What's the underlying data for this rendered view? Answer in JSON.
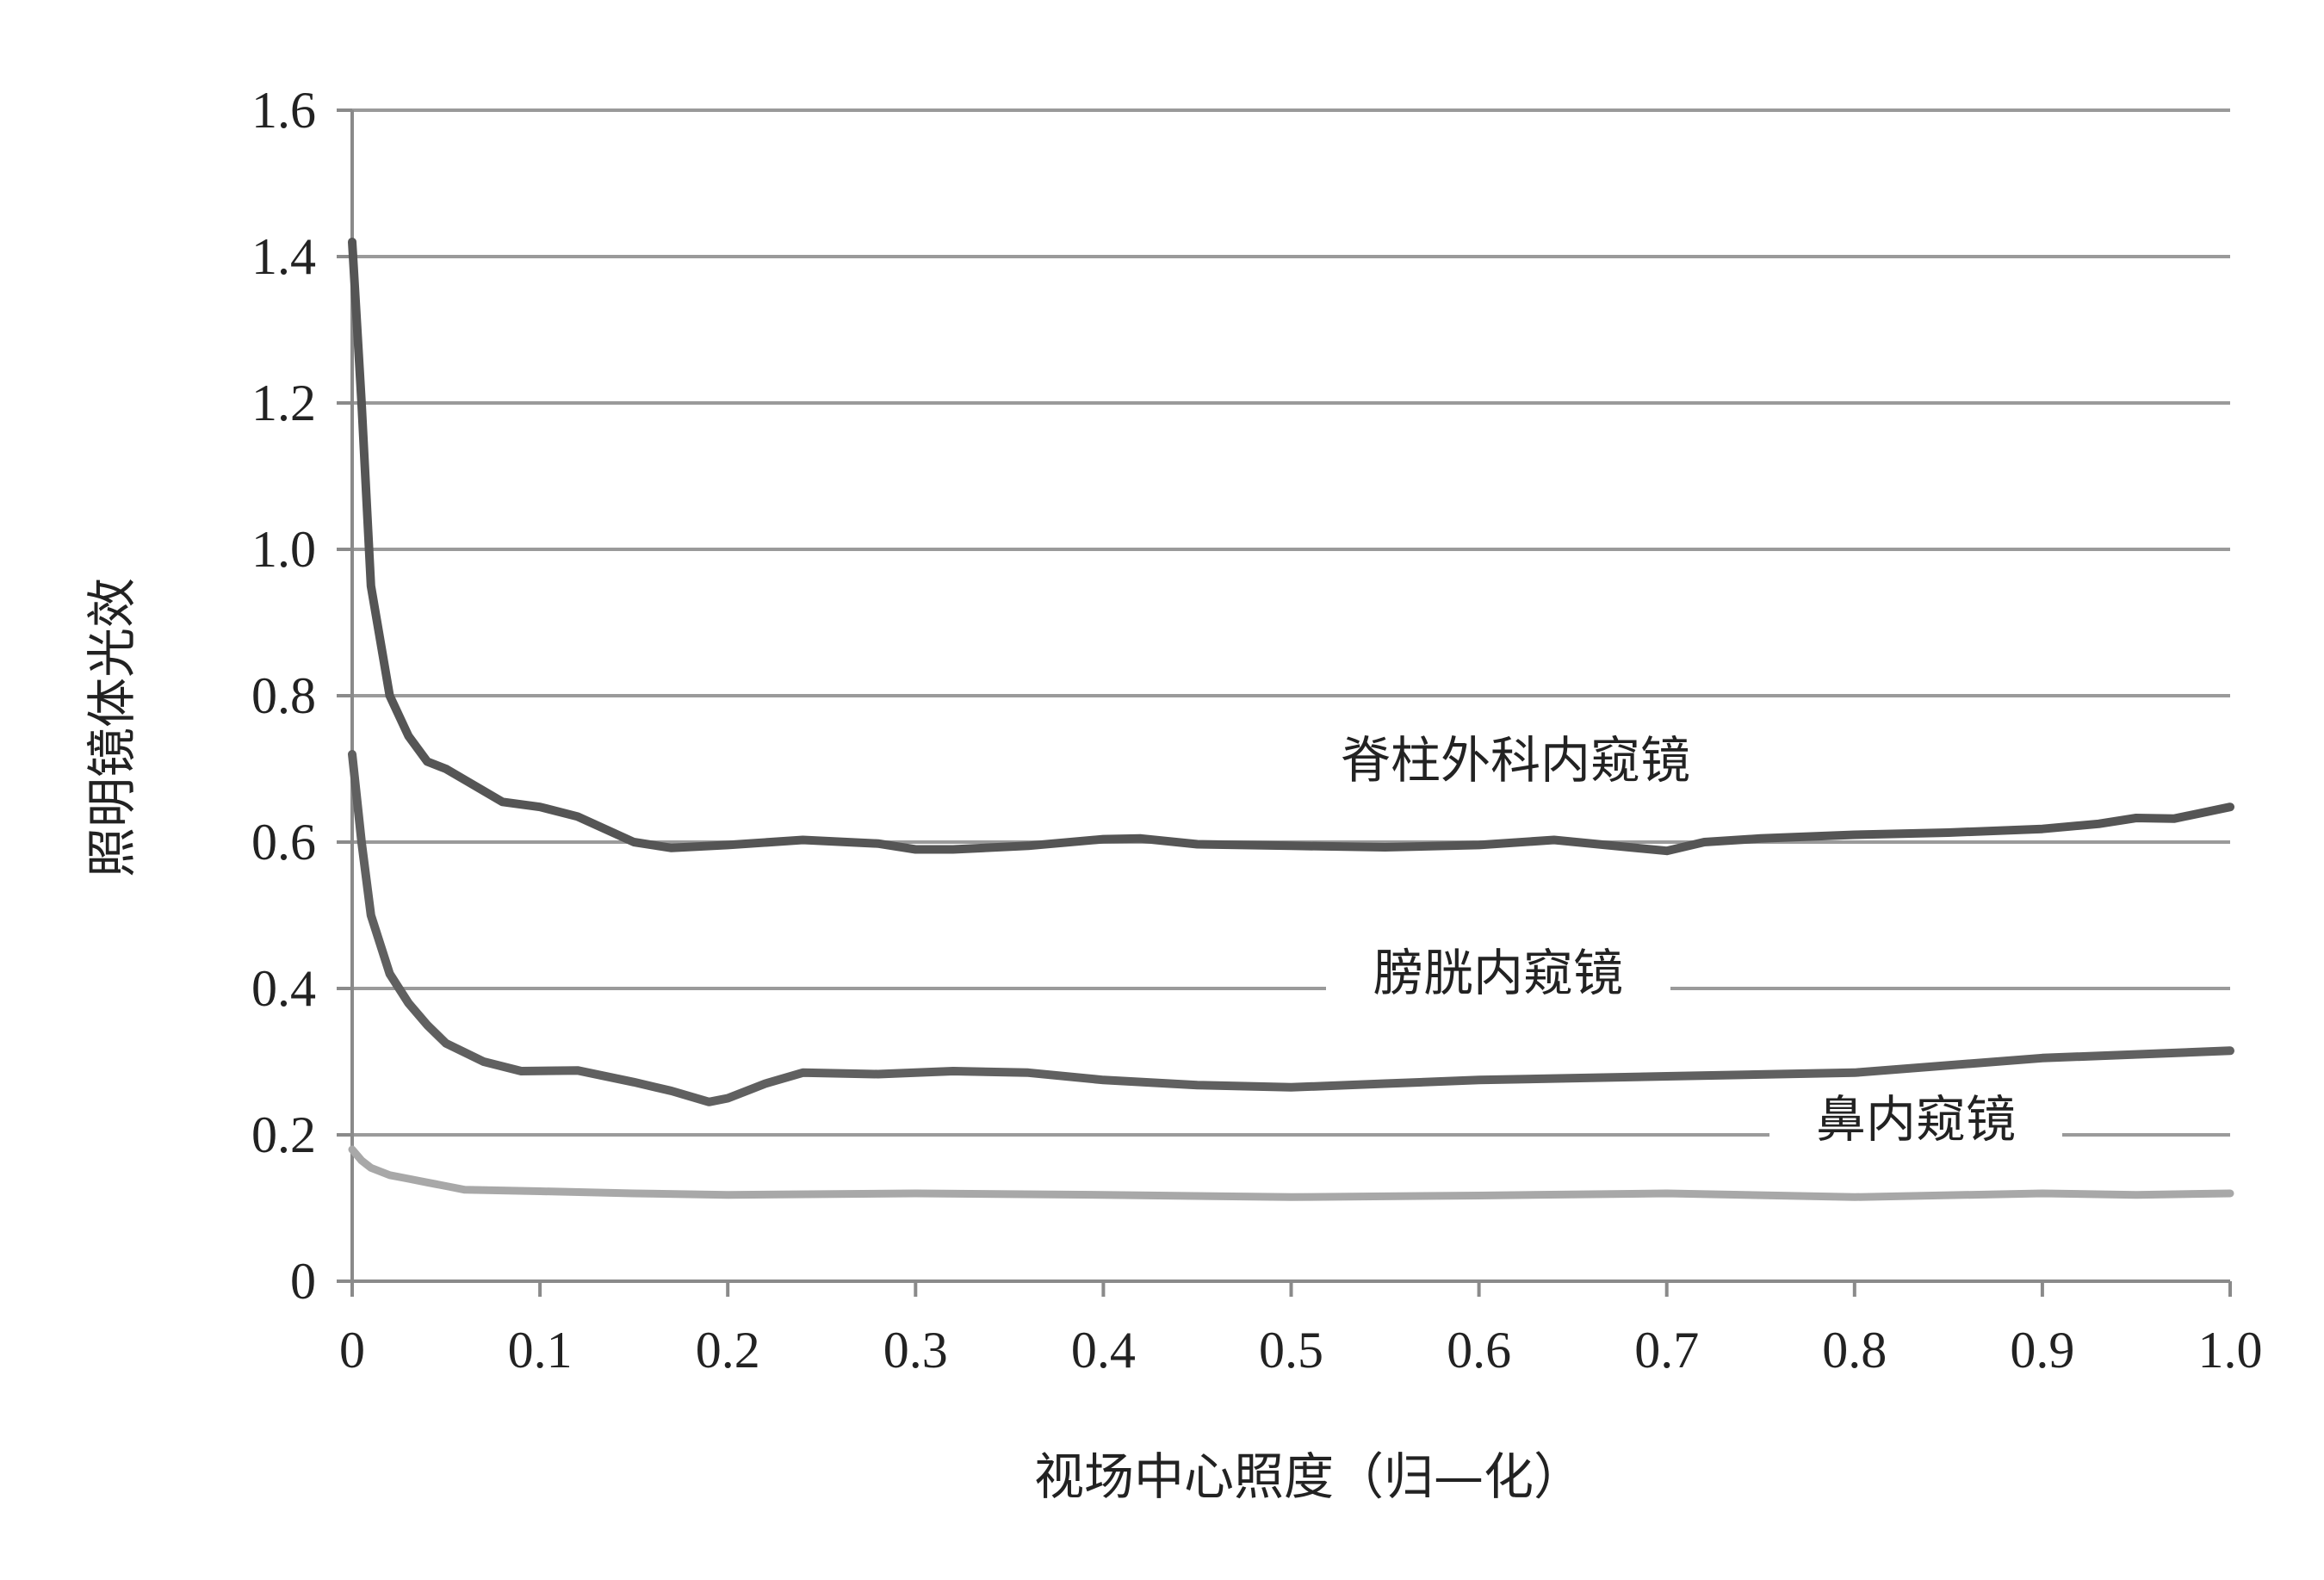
{
  "chart_data": {
    "type": "line",
    "xlabel": "视场中心照度（归—化）",
    "ylabel": "照明镜体光效",
    "xlim": [
      0,
      1.0
    ],
    "ylim": [
      0,
      1.6
    ],
    "x_ticks": [
      "0",
      "0.1",
      "0.2",
      "0.3",
      "0.4",
      "0.5",
      "0.6",
      "0.7",
      "0.8",
      "0.9",
      "1.0"
    ],
    "y_ticks": [
      "0",
      "0.2",
      "0.4",
      "0.6",
      "0.8",
      "1.0",
      "1.2",
      "1.4",
      "1.6"
    ],
    "grid": true,
    "series": [
      {
        "name": "脊柱外科内窥镜",
        "color": "#555555",
        "x": [
          0,
          0.005,
          0.01,
          0.02,
          0.03,
          0.04,
          0.05,
          0.06,
          0.08,
          0.1,
          0.12,
          0.15,
          0.17,
          0.2,
          0.24,
          0.28,
          0.3,
          0.32,
          0.36,
          0.4,
          0.42,
          0.45,
          0.5,
          0.55,
          0.6,
          0.64,
          0.68,
          0.7,
          0.72,
          0.75,
          0.8,
          0.85,
          0.9,
          0.93,
          0.95,
          0.97,
          1.0
        ],
        "y": [
          1.42,
          1.2,
          0.95,
          0.8,
          0.745,
          0.71,
          0.7,
          0.685,
          0.655,
          0.648,
          0.635,
          0.6,
          0.592,
          0.596,
          0.603,
          0.598,
          0.59,
          0.59,
          0.595,
          0.604,
          0.605,
          0.597,
          0.595,
          0.593,
          0.596,
          0.603,
          0.593,
          0.588,
          0.6,
          0.605,
          0.61,
          0.613,
          0.618,
          0.625,
          0.633,
          0.632,
          0.648
        ]
      },
      {
        "name": "膀胱内窥镜",
        "color": "#606060",
        "x": [
          0,
          0.005,
          0.01,
          0.02,
          0.03,
          0.04,
          0.05,
          0.07,
          0.09,
          0.12,
          0.15,
          0.17,
          0.19,
          0.2,
          0.22,
          0.24,
          0.28,
          0.32,
          0.36,
          0.4,
          0.45,
          0.5,
          0.55,
          0.6,
          0.7,
          0.8,
          0.9,
          1.0
        ],
        "y": [
          0.72,
          0.6,
          0.5,
          0.42,
          0.38,
          0.35,
          0.325,
          0.3,
          0.287,
          0.288,
          0.272,
          0.26,
          0.245,
          0.25,
          0.27,
          0.285,
          0.283,
          0.287,
          0.285,
          0.275,
          0.268,
          0.265,
          0.27,
          0.275,
          0.28,
          0.285,
          0.305,
          0.315
        ]
      },
      {
        "name": "鼻内窥镜",
        "color": "#a8a8a8",
        "x": [
          0,
          0.005,
          0.01,
          0.02,
          0.03,
          0.04,
          0.05,
          0.06,
          0.1,
          0.15,
          0.2,
          0.3,
          0.4,
          0.5,
          0.6,
          0.7,
          0.8,
          0.9,
          0.95,
          1.0
        ],
        "y": [
          0.18,
          0.165,
          0.155,
          0.145,
          0.14,
          0.135,
          0.13,
          0.125,
          0.123,
          0.12,
          0.118,
          0.12,
          0.118,
          0.115,
          0.117,
          0.12,
          0.115,
          0.12,
          0.118,
          0.12
        ]
      }
    ],
    "annotations": [
      "脊柱外科内窥镜",
      "膀胱内窥镜",
      "鼻内窥镜"
    ]
  }
}
